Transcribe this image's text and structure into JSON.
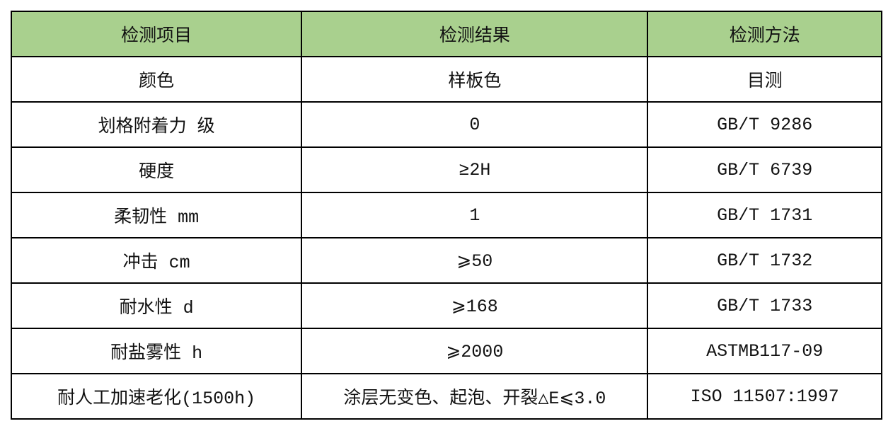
{
  "header_color": "#a9d08e",
  "headers": [
    "检测项目",
    "检测结果",
    "检测方法"
  ],
  "rows": [
    [
      "颜色",
      "样板色",
      "目测"
    ],
    [
      "划格附着力 级",
      "0",
      "GB/T 9286"
    ],
    [
      "硬度",
      "≥2H",
      "GB/T 6739"
    ],
    [
      "柔韧性 mm",
      "1",
      "GB/T 1731"
    ],
    [
      "冲击 cm",
      "⩾50",
      "GB/T 1732"
    ],
    [
      "耐水性 d",
      "⩾168",
      "GB/T 1733"
    ],
    [
      "耐盐雾性 h",
      "⩾2000",
      "ASTMB117-09"
    ],
    [
      "耐人工加速老化(1500h)",
      "涂层无变色、起泡、开裂△E⩽3.0",
      "ISO 11507:1997"
    ]
  ]
}
